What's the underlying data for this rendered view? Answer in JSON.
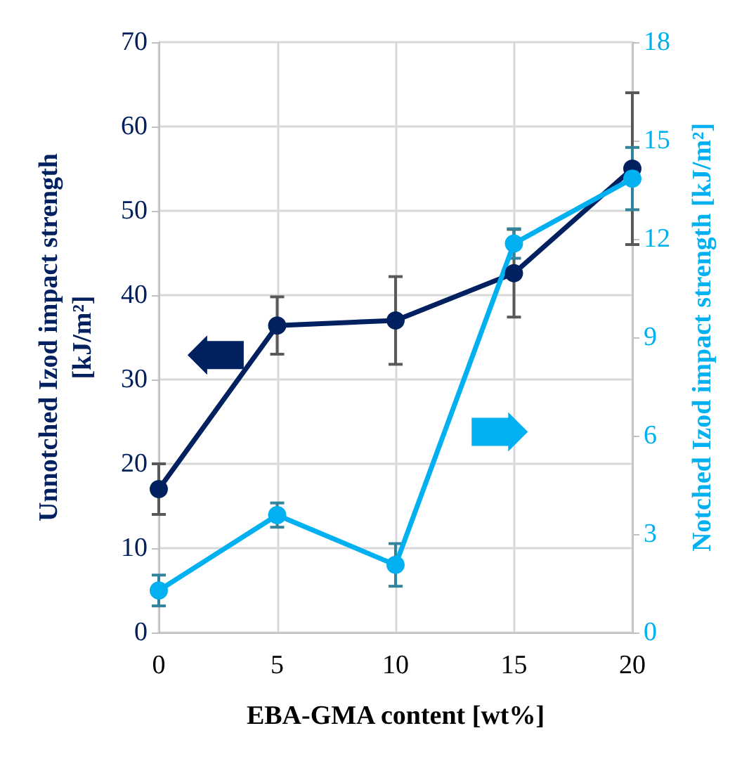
{
  "chart_data": {
    "type": "line",
    "xlabel": "EBA-GMA content [wt%]",
    "ylabel": "Unnotched Izod impact strength\n[kJ/m²]",
    "y2label": "Notched Izod impact strength [kJ/m²]",
    "x": [
      0,
      5,
      10,
      15,
      20
    ],
    "xlim": [
      0,
      20
    ],
    "xticks": [
      0,
      5,
      10,
      15,
      20
    ],
    "ylim": [
      0,
      70
    ],
    "yticks": [
      0,
      10,
      20,
      30,
      40,
      50,
      60,
      70
    ],
    "y2lim": [
      0,
      18
    ],
    "y2ticks": [
      0,
      3,
      6,
      9,
      12,
      15,
      18
    ],
    "grid": true,
    "marker": "circle",
    "line_style": "solid",
    "series": [
      {
        "color": "#002060",
        "values": [
          17.0,
          36.4,
          37.0,
          42.6,
          55.0
        ],
        "errors": [
          3,
          3.4,
          5.2,
          5.2,
          9
        ]
      },
      {
        "color": "#00b0f0",
        "axis": "y2",
        "values": [
          1.28,
          3.58,
          2.06,
          11.86,
          13.84
        ],
        "errors": [
          0.47,
          0.37,
          0.65,
          0.45,
          0.95
        ]
      }
    ]
  }
}
